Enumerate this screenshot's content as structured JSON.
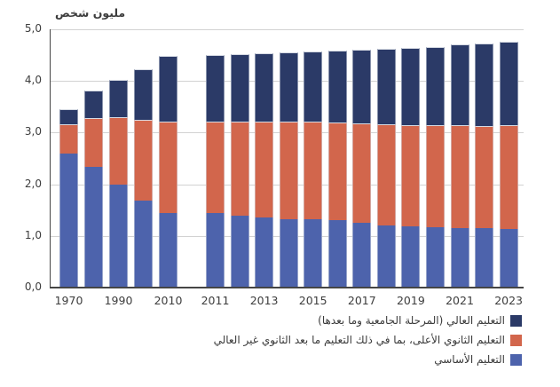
{
  "colors": {
    "basic": "#4D63AC",
    "upper_secondary": "#D2664C",
    "tertiary": "#2B3A67",
    "grid": "#D2D2D2",
    "axis": "#454545",
    "text": "#3C3C3C"
  },
  "legend": [
    {
      "label": "التعليم العالي (المرحلة الجامعية وما بعدها)",
      "color_key": "tertiary"
    },
    {
      "label": "التعليم الثانوي الأعلى، بما في ذلك التعليم ما بعد الثانوي غير العالي",
      "color_key": "upper_secondary"
    },
    {
      "label": "التعليم الأساسي",
      "color_key": "basic"
    }
  ],
  "chart_data": {
    "type": "bar",
    "stacked": true,
    "title": "مليون شخص",
    "ylim": [
      0,
      5
    ],
    "ytick_labels": [
      "0,0",
      "1,0",
      "2,0",
      "3,0",
      "4,0",
      "5,0"
    ],
    "grid": true,
    "legend_position": "bottom-right",
    "groups": [
      {
        "categories": [
          "1970",
          "1980",
          "1990",
          "2000",
          "2010"
        ],
        "xtick_shown": [
          "1970",
          "1990",
          "2010"
        ]
      },
      {
        "categories": [
          "2011",
          "2012",
          "2013",
          "2014",
          "2015",
          "2016",
          "2017",
          "2018",
          "2019",
          "2020",
          "2021",
          "2022",
          "2023"
        ],
        "xtick_shown": [
          "2011",
          "2013",
          "2015",
          "2017",
          "2019",
          "2021",
          "2023"
        ]
      }
    ],
    "series": [
      {
        "name": "التعليم الأساسي",
        "color_key": "basic",
        "values": [
          2.59,
          2.33,
          1.99,
          1.69,
          1.45,
          1.44,
          1.4,
          1.36,
          1.33,
          1.32,
          1.3,
          1.26,
          1.21,
          1.18,
          1.17,
          1.16,
          1.15,
          1.14
        ]
      },
      {
        "name": "التعليم الثانوي الأعلى، بما في ذلك التعليم ما بعد الثانوي غير العالي",
        "color_key": "upper_secondary",
        "values": [
          0.58,
          0.96,
          1.31,
          1.56,
          1.77,
          1.78,
          1.82,
          1.85,
          1.88,
          1.89,
          1.9,
          1.92,
          1.95,
          1.96,
          1.98,
          1.98,
          1.98,
          2.01
        ]
      },
      {
        "name": "التعليم العالي (المرحلة الجامعية وما بعدها)",
        "color_key": "tertiary",
        "values": [
          0.29,
          0.52,
          0.72,
          0.97,
          1.26,
          1.28,
          1.3,
          1.33,
          1.35,
          1.36,
          1.39,
          1.42,
          1.46,
          1.5,
          1.51,
          1.56,
          1.59,
          1.61
        ]
      }
    ]
  }
}
